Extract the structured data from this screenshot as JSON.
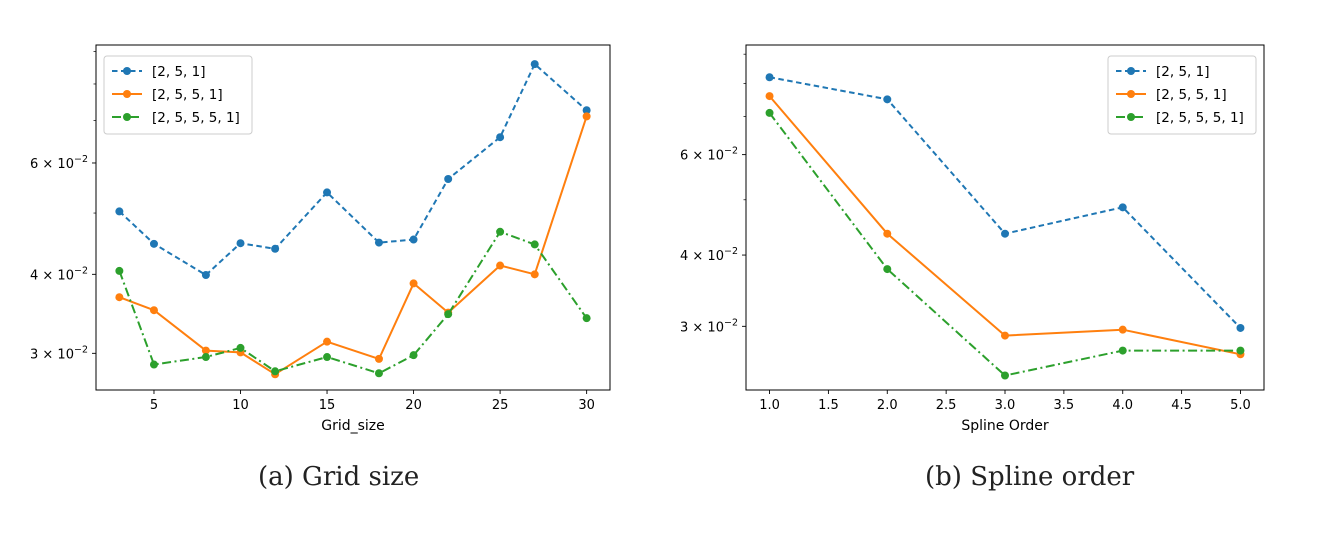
{
  "captions": {
    "a": "(a) Grid size",
    "b": "(b) Spline order"
  },
  "colors": {
    "blue": "#1f77b4",
    "orange": "#ff7f0e",
    "green": "#2ca02c"
  },
  "chart_data": [
    {
      "type": "line",
      "title": "",
      "xlabel": "Grid_size",
      "ylabel": "",
      "yscale": "log",
      "xlim": [
        1.65,
        31.35
      ],
      "ylim": [
        0.02625,
        0.0922
      ],
      "xticks": [
        5,
        10,
        15,
        20,
        25,
        30
      ],
      "yticks": [
        {
          "value": 0.03,
          "label": "3 × 10^-2"
        },
        {
          "value": 0.04,
          "label": "4 × 10^-2"
        },
        {
          "value": 0.06,
          "label": "6 × 10^-2"
        }
      ],
      "grid": false,
      "legend": "top-left",
      "x": [
        3,
        5,
        8,
        10,
        12,
        15,
        18,
        20,
        22,
        25,
        27,
        30
      ],
      "series": [
        {
          "name": "[2, 5, 1]",
          "color": "blue",
          "style": "dashed",
          "values": [
            0.0503,
            0.0447,
            0.0399,
            0.0448,
            0.0439,
            0.0539,
            0.0449,
            0.0454,
            0.0566,
            0.0659,
            0.086,
            0.0727
          ]
        },
        {
          "name": "[2, 5, 5, 1]",
          "color": "orange",
          "style": "solid",
          "values": [
            0.0368,
            0.0351,
            0.0303,
            0.0301,
            0.0278,
            0.0313,
            0.0294,
            0.0387,
            0.0348,
            0.0413,
            0.04,
            0.0711
          ]
        },
        {
          "name": "[2, 5, 5, 5, 1]",
          "color": "green",
          "style": "dashdot",
          "values": [
            0.0405,
            0.0288,
            0.0296,
            0.0306,
            0.0281,
            0.0296,
            0.0279,
            0.0298,
            0.0346,
            0.0467,
            0.0446,
            0.0341
          ]
        }
      ]
    },
    {
      "type": "line",
      "title": "",
      "xlabel": "Spline Order",
      "ylabel": "",
      "yscale": "log",
      "xlim": [
        0.8,
        5.2
      ],
      "ylim": [
        0.0232,
        0.0934
      ],
      "xticks": [
        1.0,
        1.5,
        2.0,
        2.5,
        3.0,
        3.5,
        4.0,
        4.5,
        5.0
      ],
      "yticks": [
        {
          "value": 0.03,
          "label": "3 × 10^-2"
        },
        {
          "value": 0.04,
          "label": "4 × 10^-2"
        },
        {
          "value": 0.06,
          "label": "6 × 10^-2"
        }
      ],
      "grid": false,
      "legend": "top-right",
      "x": [
        1.0,
        2.0,
        3.0,
        4.0,
        5.0
      ],
      "series": [
        {
          "name": "[2, 5, 1]",
          "color": "blue",
          "style": "dashed",
          "values": [
            0.082,
            0.075,
            0.0436,
            0.0485,
            0.0298
          ]
        },
        {
          "name": "[2, 5, 5, 1]",
          "color": "orange",
          "style": "solid",
          "values": [
            0.076,
            0.0436,
            0.0289,
            0.0296,
            0.0268
          ]
        },
        {
          "name": "[2, 5, 5, 5, 1]",
          "color": "green",
          "style": "dashdot",
          "values": [
            0.071,
            0.0378,
            0.0246,
            0.0272,
            0.0272
          ]
        }
      ]
    }
  ]
}
